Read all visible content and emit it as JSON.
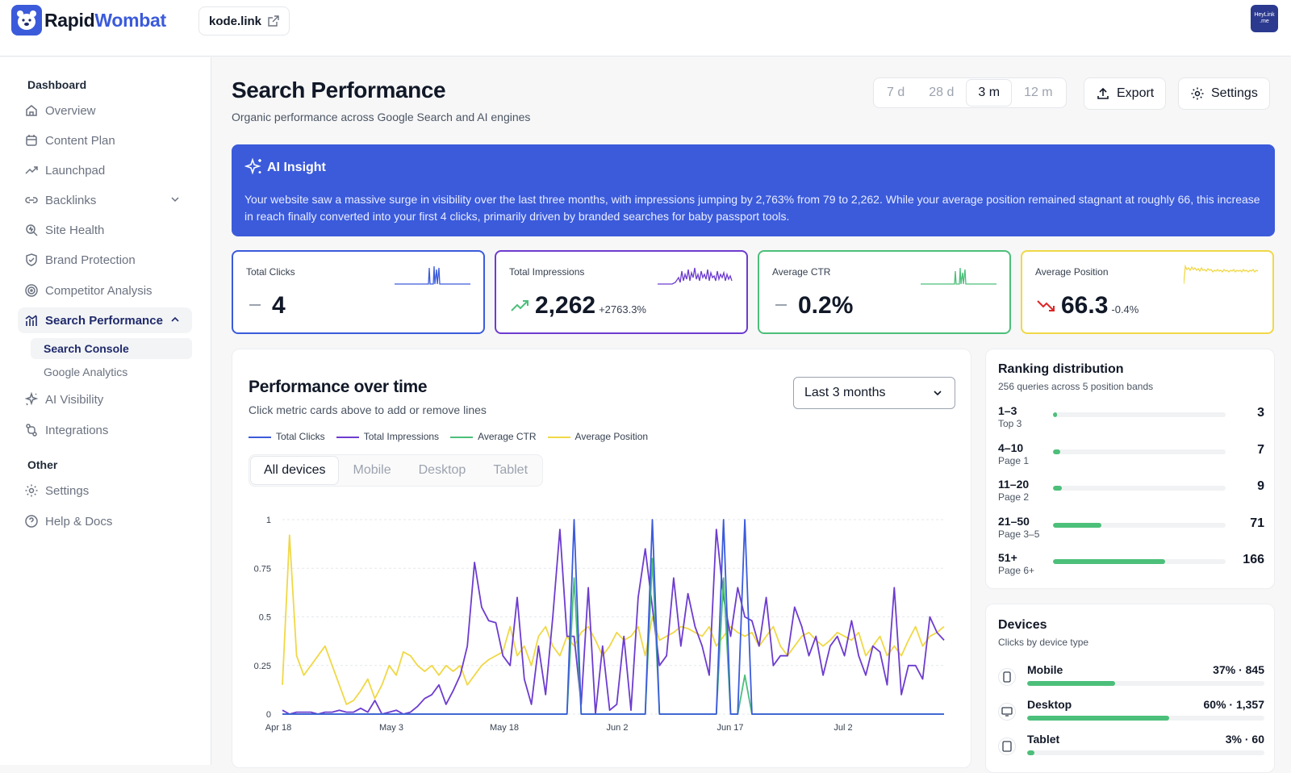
{
  "brand": {
    "name_a": "Rapid",
    "name_b": "Wombat"
  },
  "domain": {
    "label": "kode.link"
  },
  "avatar": {
    "label": "HeyLink .me"
  },
  "sidebar": {
    "dashboard_head": "Dashboard",
    "other_head": "Other",
    "items": [
      {
        "label": "Overview",
        "icon": "home-icon"
      },
      {
        "label": "Content Plan",
        "icon": "calendar-icon"
      },
      {
        "label": "Launchpad",
        "icon": "trend-up-icon"
      },
      {
        "label": "Backlinks",
        "icon": "link-icon"
      },
      {
        "label": "Site Health",
        "icon": "health-search-icon"
      },
      {
        "label": "Brand Protection",
        "icon": "shield-icon"
      },
      {
        "label": "Competitor Analysis",
        "icon": "target-icon"
      },
      {
        "label": "Search Performance",
        "icon": "bar-chart-icon"
      },
      {
        "label": "AI Visibility",
        "icon": "sparkle-icon"
      },
      {
        "label": "Integrations",
        "icon": "integration-icon"
      }
    ],
    "sub_items": [
      {
        "label": "Search Console"
      },
      {
        "label": "Google Analytics"
      }
    ],
    "other_items": [
      {
        "label": "Settings",
        "icon": "gear-icon"
      },
      {
        "label": "Help & Docs",
        "icon": "help-icon"
      }
    ]
  },
  "header": {
    "title": "Search Performance",
    "subtitle": "Organic performance across Google Search and AI engines",
    "ranges": [
      "7 d",
      "28 d",
      "3 m",
      "12 m"
    ],
    "active_range": "3 m",
    "export_label": "Export",
    "settings_label": "Settings"
  },
  "insight": {
    "title": "AI Insight",
    "text": "Your website saw a massive surge in visibility over the last three months, with impressions jumping by 2,763% from 79 to 2,262. While your average position remained stagnant at roughly 66, this increase in reach finally converted into your first 4 clicks, primarily driven by branded searches for baby passport tools."
  },
  "kpis": [
    {
      "label": "Total Clicks",
      "value": "4",
      "delta": "",
      "color": "#3b5bdb",
      "trend": "flat"
    },
    {
      "label": "Total Impressions",
      "value": "2,262",
      "delta": "+2763.3%",
      "color": "#6d3ccf",
      "trend": "up"
    },
    {
      "label": "Average CTR",
      "value": "0.2%",
      "delta": "",
      "color": "#4cbf7a",
      "trend": "flat"
    },
    {
      "label": "Average Position",
      "value": "66.3",
      "delta": "-0.4%",
      "color": "#f0d847",
      "trend": "down"
    }
  ],
  "performance": {
    "title": "Performance over time",
    "subtitle": "Click metric cards above to add or remove lines",
    "period_select": "Last 3 months",
    "device_tabs": [
      "All devices",
      "Mobile",
      "Desktop",
      "Tablet"
    ],
    "active_device": "All devices"
  },
  "chart_data": {
    "type": "line",
    "x_ticks": [
      "Apr 18",
      "May 3",
      "May 18",
      "Jun 2",
      "Jun 17",
      "Jul 2"
    ],
    "y_ticks": [
      "0",
      "0.25",
      "0.5",
      "0.75",
      "1"
    ],
    "ylim": [
      0,
      1
    ],
    "grid": true,
    "legend_position": "top-left",
    "series": [
      {
        "name": "Total Clicks",
        "color": "#3b5bdb",
        "values": [
          0,
          0,
          0,
          0,
          0,
          0,
          0,
          0,
          0,
          0,
          0,
          0,
          0,
          0,
          0,
          0,
          0,
          0,
          0,
          0,
          0,
          0,
          0,
          0,
          0,
          0,
          0,
          0,
          0,
          0,
          0,
          0,
          0,
          0,
          0,
          0,
          0,
          0,
          0,
          0,
          0,
          1,
          0,
          0,
          0,
          0,
          0,
          0,
          0,
          0,
          0,
          0,
          1,
          0,
          0,
          0,
          0,
          0,
          0,
          0,
          0,
          0,
          1,
          0,
          0,
          1,
          0,
          0,
          0,
          0,
          0,
          0,
          0,
          0,
          0,
          0,
          0,
          0,
          0,
          0,
          0,
          0,
          0,
          0,
          0,
          0,
          0,
          0,
          0,
          0,
          0,
          0,
          0,
          0
        ]
      },
      {
        "name": "Total Impressions",
        "color": "#6d3ccf",
        "values": [
          0.02,
          0,
          0.01,
          0.01,
          0.01,
          0,
          0.01,
          0.01,
          0.02,
          0.01,
          0.01,
          0.03,
          0.01,
          0.07,
          0,
          0.01,
          0.02,
          0,
          0.01,
          0.04,
          0.08,
          0.1,
          0.15,
          0.05,
          0.12,
          0.2,
          0.35,
          0.78,
          0.55,
          0.48,
          0.47,
          0.3,
          0.25,
          0.6,
          0.18,
          0.05,
          0.35,
          0.1,
          0.5,
          0.95,
          0.4,
          0.4,
          0.05,
          0.65,
          0,
          0.35,
          0.02,
          0.05,
          0.4,
          0.02,
          0.6,
          0.85,
          0.55,
          0.25,
          0.3,
          0.7,
          0.35,
          0.62,
          0.45,
          0.35,
          0.2,
          0.95,
          0.6,
          0.4,
          0.65,
          0.5,
          0.48,
          0.35,
          0.6,
          0.25,
          0.3,
          0.3,
          0.55,
          0.45,
          0.3,
          0.4,
          0.2,
          0.35,
          0.4,
          0.3,
          0.48,
          0.3,
          0.2,
          0.35,
          0.32,
          0.15,
          0.65,
          0.1,
          0.25,
          0.25,
          0.18,
          0.5,
          0.42,
          0.38
        ]
      },
      {
        "name": "Average CTR",
        "color": "#4cbf7a",
        "values": [
          0,
          0,
          0,
          0,
          0,
          0,
          0,
          0,
          0,
          0,
          0,
          0,
          0,
          0,
          0,
          0,
          0,
          0,
          0,
          0,
          0,
          0,
          0,
          0,
          0,
          0,
          0,
          0,
          0,
          0,
          0,
          0,
          0,
          0,
          0,
          0,
          0,
          0,
          0,
          0,
          0,
          0.7,
          0,
          0,
          0,
          0,
          0,
          0,
          0,
          0,
          0,
          0,
          0.8,
          0,
          0,
          0,
          0,
          0,
          0,
          0,
          0,
          0,
          0.7,
          0,
          0,
          0.2,
          0,
          0,
          0,
          0,
          0,
          0,
          0,
          0,
          0,
          0,
          0,
          0,
          0,
          0,
          0,
          0,
          0,
          0,
          0,
          0,
          0,
          0,
          0,
          0,
          0,
          0,
          0,
          0
        ]
      },
      {
        "name": "Average Position",
        "color": "#f0d847",
        "values": [
          0.15,
          0.92,
          0.3,
          0.2,
          0.25,
          0.3,
          0.35,
          0.25,
          0.15,
          0.05,
          0.07,
          0.12,
          0.18,
          0.08,
          0.15,
          0.25,
          0.2,
          0.32,
          0.3,
          0.25,
          0.22,
          0.25,
          0.2,
          0.25,
          0.22,
          0.25,
          0.15,
          0.2,
          0.25,
          0.28,
          0.3,
          0.32,
          0.45,
          0.3,
          0.35,
          0.25,
          0.4,
          0.45,
          0.35,
          0.3,
          0.4,
          0.35,
          0.42,
          0.45,
          0.38,
          0.3,
          0.35,
          0.42,
          0.38,
          0.4,
          0.45,
          0.3,
          0.5,
          0.38,
          0.4,
          0.42,
          0.45,
          0.44,
          0.42,
          0.4,
          0.45,
          0.35,
          0.4,
          0.45,
          0.42,
          0.4,
          0.42,
          0.35,
          0.4,
          0.45,
          0.35,
          0.3,
          0.35,
          0.4,
          0.42,
          0.38,
          0.35,
          0.38,
          0.42,
          0.4,
          0.38,
          0.42,
          0.3,
          0.35,
          0.4,
          0.3,
          0.35,
          0.3,
          0.38,
          0.45,
          0.35,
          0.4,
          0.42,
          0.45
        ]
      }
    ]
  },
  "ranking": {
    "title": "Ranking distribution",
    "subtitle": "256 queries across 5 position bands",
    "bands": [
      {
        "range": "1–3",
        "label": "Top 3",
        "count": "3",
        "fraction": 0.018
      },
      {
        "range": "4–10",
        "label": "Page 1",
        "count": "7",
        "fraction": 0.04
      },
      {
        "range": "11–20",
        "label": "Page 2",
        "count": "9",
        "fraction": 0.05
      },
      {
        "range": "21–50",
        "label": "Page 3–5",
        "count": "71",
        "fraction": 0.28
      },
      {
        "range": "51+",
        "label": "Page 6+",
        "count": "166",
        "fraction": 0.65
      }
    ]
  },
  "devices": {
    "title": "Devices",
    "subtitle": "Clicks by device type",
    "rows": [
      {
        "name": "Mobile",
        "stat": "37% · 845",
        "fraction": 0.37,
        "icon": "phone-icon"
      },
      {
        "name": "Desktop",
        "stat": "60% · 1,357",
        "fraction": 0.6,
        "icon": "monitor-icon"
      },
      {
        "name": "Tablet",
        "stat": "3% · 60",
        "fraction": 0.03,
        "icon": "tablet-icon"
      }
    ]
  }
}
